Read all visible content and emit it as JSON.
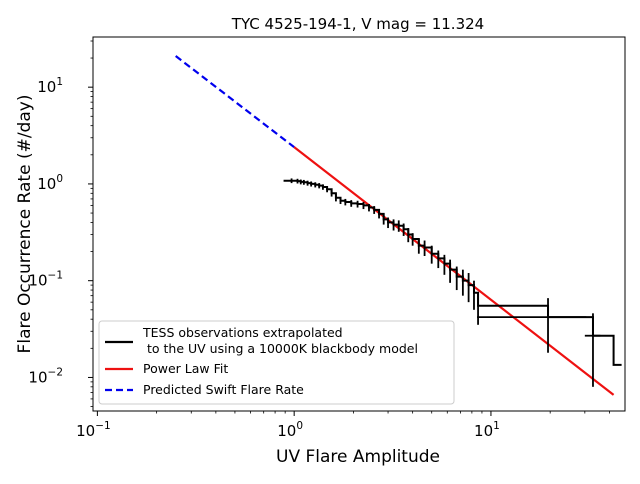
{
  "chart_data": {
    "type": "line",
    "title": "TYC 4525-194-1, V mag = 11.324",
    "xlabel": "UV Flare Amplitude",
    "ylabel": "Flare Occurrence Rate (#/day)",
    "xscale": "log",
    "yscale": "log",
    "xlim": [
      0.095,
      48
    ],
    "ylim": [
      0.0045,
      33
    ],
    "x_ticks": [
      {
        "value": 0.1,
        "label": "10",
        "exp": "−1"
      },
      {
        "value": 1,
        "label": "10",
        "exp": "0"
      },
      {
        "value": 10,
        "label": "10",
        "exp": "1"
      }
    ],
    "y_ticks": [
      {
        "value": 0.01,
        "label": "10",
        "exp": "−2"
      },
      {
        "value": 0.1,
        "label": "10",
        "exp": "−1"
      },
      {
        "value": 1,
        "label": "10",
        "exp": "0"
      },
      {
        "value": 10,
        "label": "10",
        "exp": "1"
      }
    ],
    "legend_position": "lower-left",
    "series": [
      {
        "name": "TESS observations extrapolated\n to the UV using a 10000K blackbody model",
        "style": "step-with-errorbars",
        "color": "#000000",
        "points": [
          {
            "x": 0.97,
            "y": 1.08,
            "yerr": 0.06
          },
          {
            "x": 1.04,
            "y": 1.07,
            "yerr": 0.06
          },
          {
            "x": 1.08,
            "y": 1.05,
            "yerr": 0.06
          },
          {
            "x": 1.12,
            "y": 1.04,
            "yerr": 0.06
          },
          {
            "x": 1.17,
            "y": 1.02,
            "yerr": 0.06
          },
          {
            "x": 1.22,
            "y": 1.0,
            "yerr": 0.06
          },
          {
            "x": 1.28,
            "y": 0.98,
            "yerr": 0.06
          },
          {
            "x": 1.34,
            "y": 0.96,
            "yerr": 0.06
          },
          {
            "x": 1.4,
            "y": 0.93,
            "yerr": 0.06
          },
          {
            "x": 1.47,
            "y": 0.88,
            "yerr": 0.06
          },
          {
            "x": 1.55,
            "y": 0.8,
            "yerr": 0.06
          },
          {
            "x": 1.63,
            "y": 0.72,
            "yerr": 0.06
          },
          {
            "x": 1.72,
            "y": 0.67,
            "yerr": 0.05
          },
          {
            "x": 1.82,
            "y": 0.65,
            "yerr": 0.05
          },
          {
            "x": 1.95,
            "y": 0.63,
            "yerr": 0.05
          },
          {
            "x": 2.1,
            "y": 0.62,
            "yerr": 0.05
          },
          {
            "x": 2.25,
            "y": 0.6,
            "yerr": 0.05
          },
          {
            "x": 2.4,
            "y": 0.57,
            "yerr": 0.05
          },
          {
            "x": 2.55,
            "y": 0.54,
            "yerr": 0.05
          },
          {
            "x": 2.7,
            "y": 0.49,
            "yerr": 0.05
          },
          {
            "x": 2.85,
            "y": 0.43,
            "yerr": 0.05
          },
          {
            "x": 3.0,
            "y": 0.4,
            "yerr": 0.05
          },
          {
            "x": 3.2,
            "y": 0.38,
            "yerr": 0.05
          },
          {
            "x": 3.4,
            "y": 0.37,
            "yerr": 0.05
          },
          {
            "x": 3.6,
            "y": 0.34,
            "yerr": 0.05
          },
          {
            "x": 3.8,
            "y": 0.3,
            "yerr": 0.05
          },
          {
            "x": 4.0,
            "y": 0.27,
            "yerr": 0.04
          },
          {
            "x": 4.3,
            "y": 0.23,
            "yerr": 0.04
          },
          {
            "x": 4.6,
            "y": 0.22,
            "yerr": 0.04
          },
          {
            "x": 5.0,
            "y": 0.19,
            "yerr": 0.04
          },
          {
            "x": 5.4,
            "y": 0.17,
            "yerr": 0.035
          },
          {
            "x": 5.8,
            "y": 0.15,
            "yerr": 0.035
          },
          {
            "x": 6.2,
            "y": 0.13,
            "yerr": 0.035
          },
          {
            "x": 6.7,
            "y": 0.11,
            "yerr": 0.03
          },
          {
            "x": 7.2,
            "y": 0.1,
            "yerr": 0.03
          },
          {
            "x": 7.7,
            "y": 0.09,
            "yerr": 0.03
          },
          {
            "x": 8.2,
            "y": 0.075,
            "yerr": 0.025
          },
          {
            "x": 8.6,
            "y": 0.055,
            "yerr": 0.02
          },
          {
            "x": 19.5,
            "y": 0.042,
            "yerr": 0.024,
            "xerr": 11
          },
          {
            "x": 33.0,
            "y": 0.027,
            "yerr": 0.019,
            "xerr": 3
          },
          {
            "x": 42.0,
            "y": 0.0135
          }
        ]
      },
      {
        "name": "Power Law Fit",
        "style": "solid",
        "color": "#ee1111",
        "x": [
          1.0,
          42.0
        ],
        "y": [
          2.4,
          0.0066
        ]
      },
      {
        "name": "Predicted Swift Flare Rate",
        "style": "dashed",
        "color": "#0000ee",
        "x": [
          0.25,
          1.0
        ],
        "y": [
          21.0,
          2.4
        ]
      }
    ]
  }
}
